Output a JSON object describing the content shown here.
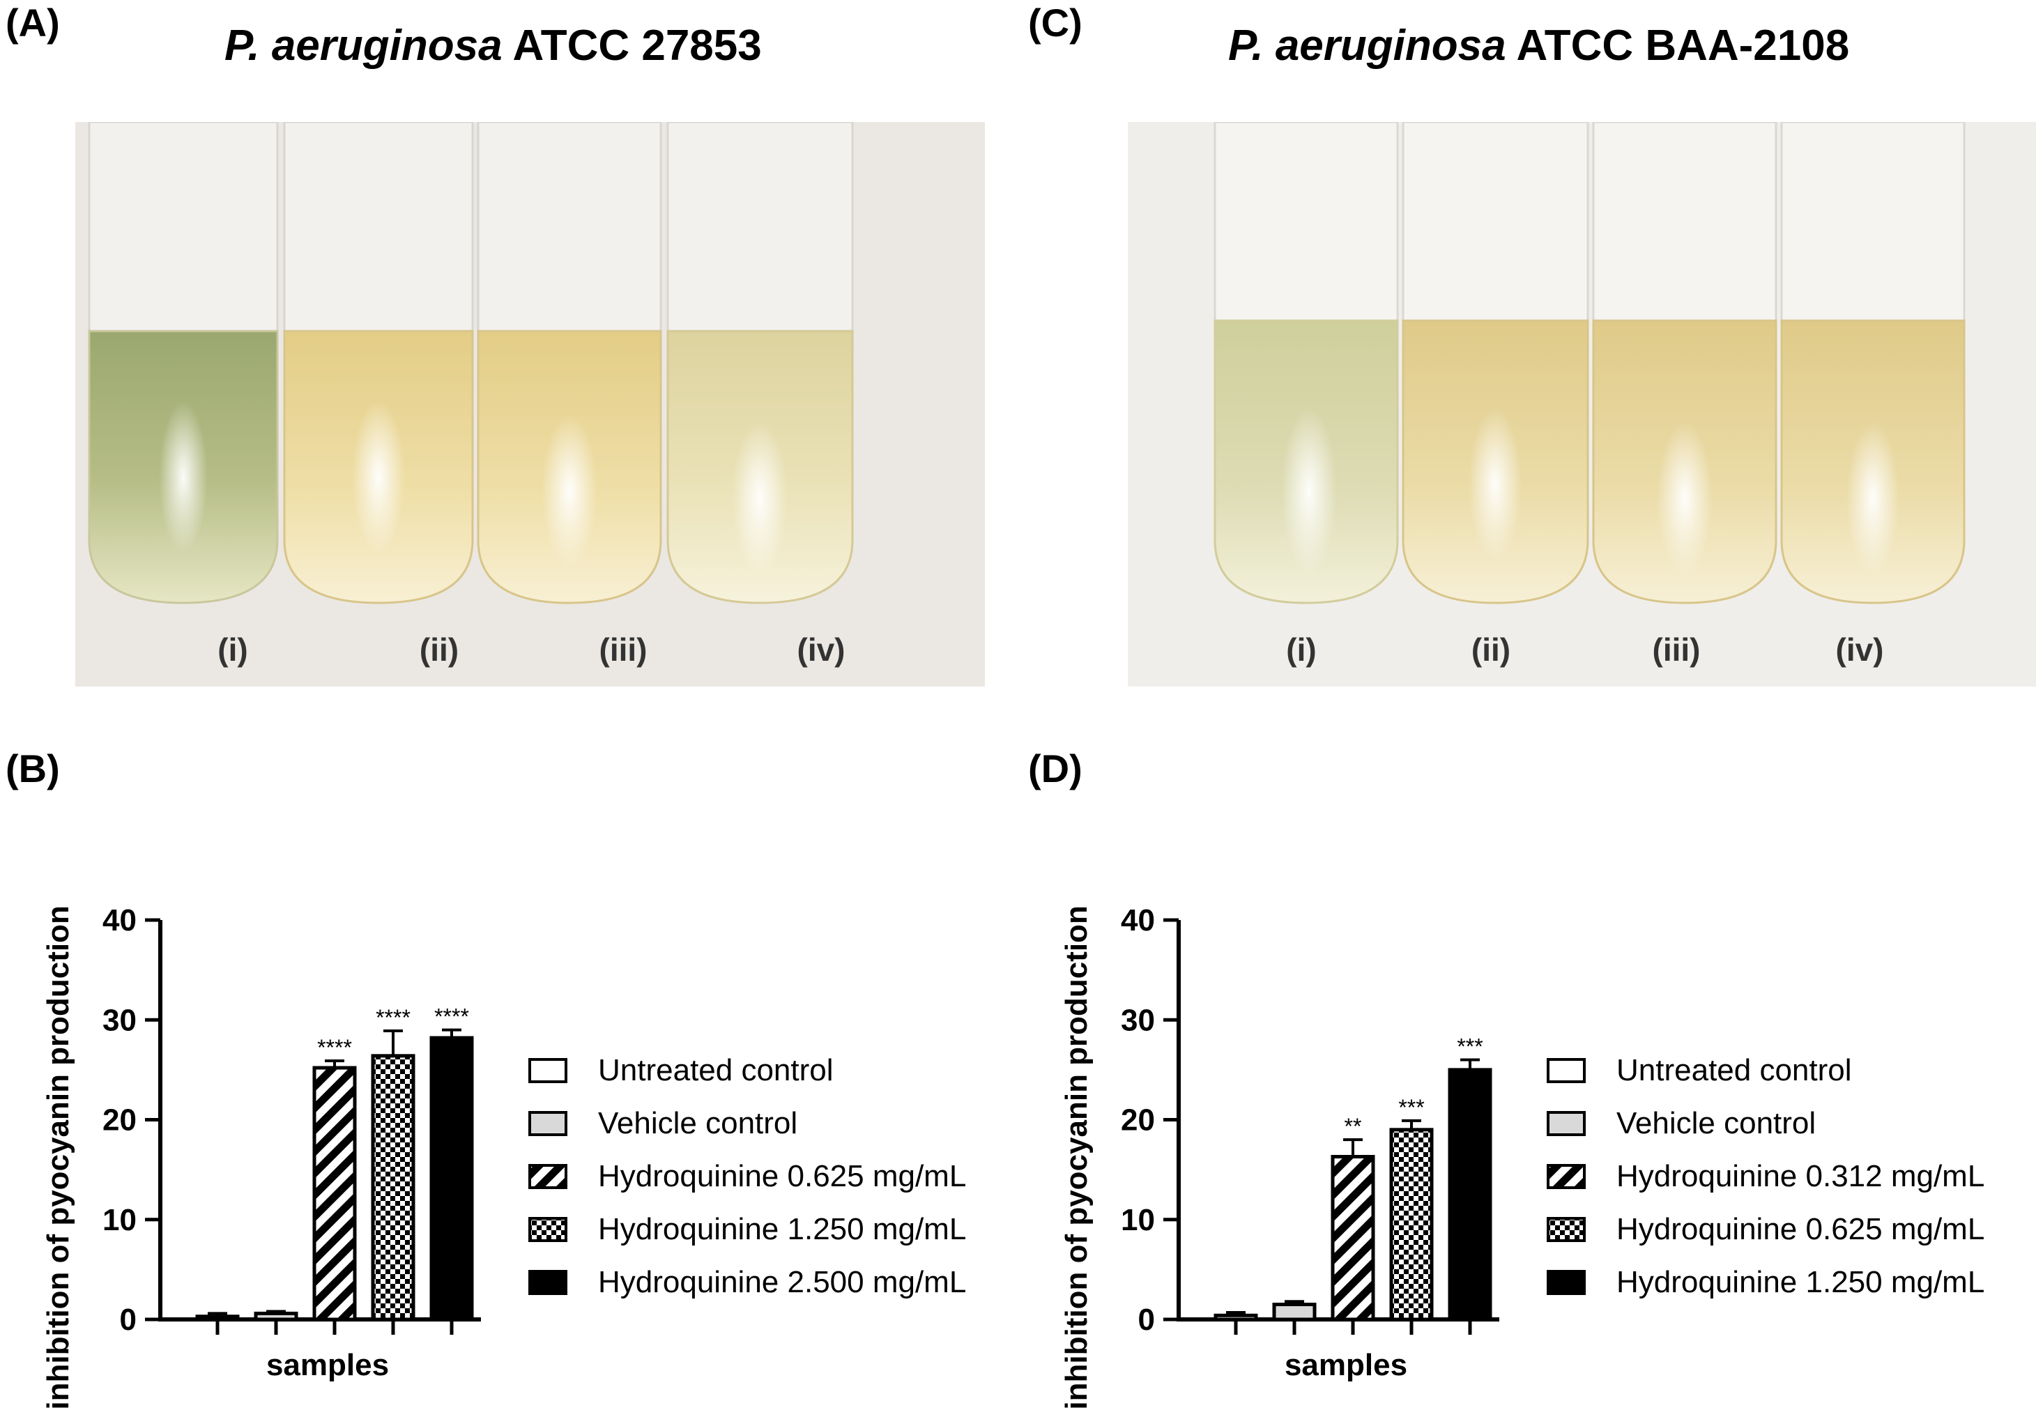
{
  "panels": {
    "A": {
      "letter": "(A)",
      "title_italic": "P. aeruginosa",
      "title_rest": " ATCC 27853",
      "tube_labels": [
        "(i)",
        "(ii)",
        "(iii)",
        "(iv)"
      ]
    },
    "B": {
      "letter": "(B)"
    },
    "C": {
      "letter": "(C)",
      "title_italic": "P. aeruginosa",
      "title_rest": " ATCC BAA-2108",
      "tube_labels": [
        "(i)",
        "(ii)",
        "(iii)",
        "(iv)"
      ]
    },
    "D": {
      "letter": "(D)"
    }
  },
  "colors": {
    "tube_green": "#a6b27a",
    "tube_yellow": "#ead79a",
    "tube_pale": "#e9dfad",
    "background_photo": "#ece9e4",
    "vehicle_fill": "#d9d9d9",
    "bar_black": "#000000"
  },
  "chart_data": [
    {
      "type": "bar",
      "panel": "B",
      "title": "",
      "xlabel": "samples",
      "ylabel": "% inhibition of pyocyanin production",
      "ylim": [
        0,
        40
      ],
      "yticks": [
        0,
        10,
        20,
        30,
        40
      ],
      "categories": [
        "Untreated control",
        "Vehicle control",
        "Hydroquinine 0.625 mg/mL",
        "Hydroquinine 1.250 mg/mL",
        "Hydroquinine 2.500 mg/mL"
      ],
      "values": [
        0.3,
        0.6,
        25.2,
        26.4,
        28.2
      ],
      "errors": [
        0.3,
        0.2,
        0.7,
        2.5,
        0.8
      ],
      "significance": [
        "",
        "",
        "****",
        "****",
        "****"
      ],
      "patterns": [
        "white",
        "gray",
        "hatch",
        "checker",
        "black"
      ],
      "legend_position": "right"
    },
    {
      "type": "bar",
      "panel": "D",
      "title": "",
      "xlabel": "samples",
      "ylabel": "% inhibition of pyocyanin production",
      "ylim": [
        0,
        40
      ],
      "yticks": [
        0,
        10,
        20,
        30,
        40
      ],
      "categories": [
        "Untreated control",
        "Vehicle control",
        "Hydroquinine 0.312 mg/mL",
        "Hydroquinine 0.625 mg/mL",
        "Hydroquinine 1.250 mg/mL"
      ],
      "values": [
        0.4,
        1.5,
        16.3,
        19.0,
        25.0
      ],
      "errors": [
        0.3,
        0.3,
        1.7,
        0.9,
        1.0
      ],
      "significance": [
        "",
        "",
        "**",
        "***",
        "***"
      ],
      "patterns": [
        "white",
        "gray",
        "hatch",
        "checker",
        "black"
      ],
      "legend_position": "right"
    }
  ]
}
